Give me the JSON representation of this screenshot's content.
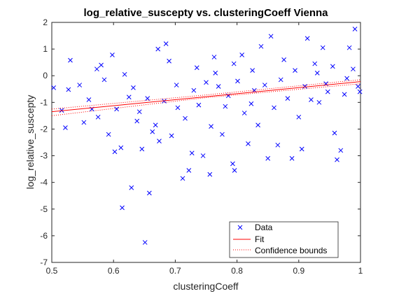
{
  "chart_data": {
    "type": "scatter",
    "title": "log_relative_suscepty vs. clusteringCoeff Vienna",
    "xlabel": "clusteringCoeff",
    "ylabel": "log_relative_suscepty",
    "xlim": [
      0.5,
      1
    ],
    "ylim": [
      -7,
      2
    ],
    "xticks": [
      "0.5",
      "0.6",
      "0.7",
      "0.8",
      "0.9",
      "1"
    ],
    "yticks": [
      "-7",
      "-6",
      "-5",
      "-4",
      "-3",
      "-2",
      "-1",
      "0",
      "1",
      "2"
    ],
    "grid": false,
    "legend_position": "bottom-right",
    "colors": {
      "data": "#0000ff",
      "fit": "#ff0000",
      "bounds": "#ff0000"
    },
    "series": [
      {
        "name": "Data",
        "style": "markers-x",
        "point_count_note": "approx",
        "points": [
          [
            0.503,
            -0.45
          ],
          [
            0.516,
            -1.3
          ],
          [
            0.522,
            -1.95
          ],
          [
            0.527,
            -0.52
          ],
          [
            0.53,
            0.58
          ],
          [
            0.545,
            -0.35
          ],
          [
            0.552,
            -1.75
          ],
          [
            0.565,
            -1.25
          ],
          [
            0.573,
            0.25
          ],
          [
            0.58,
            0.4
          ],
          [
            0.592,
            -2.2
          ],
          [
            0.598,
            0.78
          ],
          [
            0.602,
            -2.85
          ],
          [
            0.612,
            -2.7
          ],
          [
            0.614,
            -4.95
          ],
          [
            0.625,
            -0.8
          ],
          [
            0.629,
            -4.2
          ],
          [
            0.638,
            -1.7
          ],
          [
            0.646,
            -2.75
          ],
          [
            0.651,
            -6.25
          ],
          [
            0.658,
            -4.4
          ],
          [
            0.663,
            -2.1
          ],
          [
            0.672,
            1.0
          ],
          [
            0.674,
            -2.45
          ],
          [
            0.685,
            1.2
          ],
          [
            0.69,
            0.55
          ],
          [
            0.704,
            -1.2
          ],
          [
            0.712,
            -3.85
          ],
          [
            0.722,
            -3.55
          ],
          [
            0.727,
            -2.9
          ],
          [
            0.745,
            -3.0
          ],
          [
            0.756,
            -3.7
          ],
          [
            0.763,
            0.7
          ],
          [
            0.781,
            -1.15
          ],
          [
            0.793,
            -3.3
          ],
          [
            0.796,
            -3.55
          ],
          [
            0.808,
            0.78
          ],
          [
            0.818,
            -2.55
          ],
          [
            0.823,
            -1.05
          ],
          [
            0.839,
            1.1
          ],
          [
            0.85,
            -3.1
          ],
          [
            0.855,
            1.48
          ],
          [
            0.866,
            -2.6
          ],
          [
            0.876,
            0.6
          ],
          [
            0.889,
            -3.1
          ],
          [
            0.905,
            -2.75
          ],
          [
            0.914,
            1.4
          ],
          [
            0.926,
            0.45
          ],
          [
            0.933,
            -1.0
          ],
          [
            0.939,
            1.05
          ],
          [
            0.947,
            -0.6
          ],
          [
            0.958,
            -2.15
          ],
          [
            0.962,
            -3.15
          ],
          [
            0.968,
            -2.8
          ],
          [
            0.974,
            -0.7
          ],
          [
            0.982,
            1.05
          ],
          [
            0.991,
            1.75
          ],
          [
            0.996,
            -0.4
          ],
          [
            0.999,
            -0.6
          ],
          [
            0.56,
            -0.9
          ],
          [
            0.575,
            -1.55
          ],
          [
            0.585,
            -0.15
          ],
          [
            0.605,
            -1.25
          ],
          [
            0.618,
            0.05
          ],
          [
            0.632,
            -0.45
          ],
          [
            0.642,
            -1.35
          ],
          [
            0.655,
            -0.85
          ],
          [
            0.668,
            -1.85
          ],
          [
            0.682,
            -0.95
          ],
          [
            0.694,
            -2.25
          ],
          [
            0.702,
            -0.35
          ],
          [
            0.716,
            -1.6
          ],
          [
            0.73,
            -0.55
          ],
          [
            0.738,
            -1.1
          ],
          [
            0.75,
            -0.25
          ],
          [
            0.758,
            -1.9
          ],
          [
            0.77,
            -0.4
          ],
          [
            0.776,
            -2.2
          ],
          [
            0.786,
            -0.75
          ],
          [
            0.801,
            -0.2
          ],
          [
            0.812,
            -1.4
          ],
          [
            0.828,
            -0.55
          ],
          [
            0.834,
            -1.85
          ],
          [
            0.845,
            -0.35
          ],
          [
            0.86,
            -1.2
          ],
          [
            0.871,
            -0.15
          ],
          [
            0.882,
            -0.85
          ],
          [
            0.894,
            0.2
          ],
          [
            0.9,
            -1.55
          ],
          [
            0.91,
            -0.4
          ],
          [
            0.92,
            -0.9
          ],
          [
            0.93,
            0.1
          ],
          [
            0.944,
            -0.3
          ],
          [
            0.955,
            0.35
          ],
          [
            0.978,
            -0.1
          ],
          [
            0.988,
            0.25
          ],
          [
            0.735,
            0.3
          ],
          [
            0.765,
            0.1
          ],
          [
            0.795,
            0.45
          ],
          [
            0.825,
            0.2
          ]
        ]
      },
      {
        "name": "Fit",
        "style": "line-solid",
        "x": [
          0.5,
          1.0
        ],
        "y": [
          -1.35,
          -0.22
        ]
      },
      {
        "name": "Confidence bounds",
        "style": "line-dotted",
        "upper": {
          "x": [
            0.5,
            0.75,
            1.0
          ],
          "y": [
            -1.25,
            -0.72,
            -0.15
          ]
        },
        "lower": {
          "x": [
            0.5,
            0.75,
            1.0
          ],
          "y": [
            -1.5,
            -0.82,
            -0.3
          ]
        }
      }
    ]
  }
}
